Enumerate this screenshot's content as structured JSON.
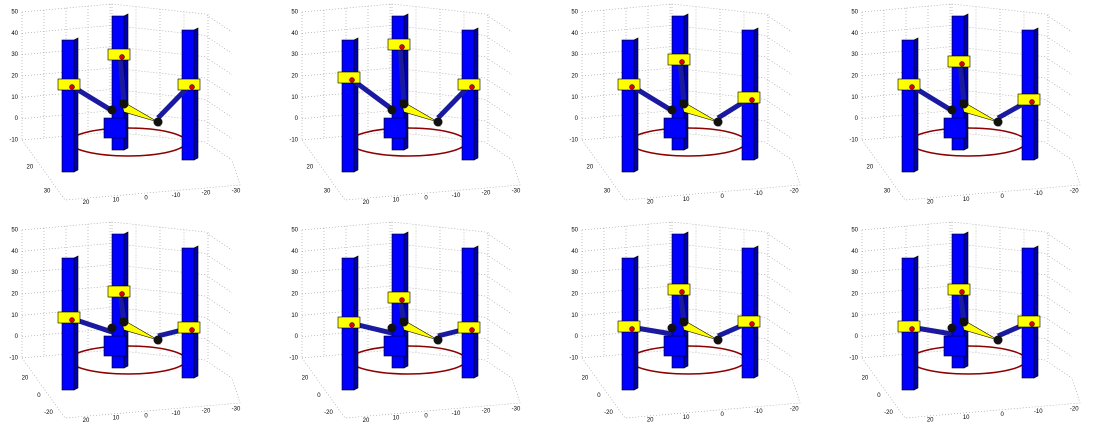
{
  "panels": [
    {
      "z_ticks": [
        50,
        40,
        30,
        20,
        10,
        0,
        -10
      ],
      "y_ticks": [
        20,
        30
      ],
      "x_ticks": [
        20,
        10,
        0,
        -10,
        -20,
        -30
      ]
    },
    {
      "z_ticks": [
        50,
        40,
        30,
        20,
        10,
        0,
        -10
      ],
      "y_ticks": [
        20,
        30
      ],
      "x_ticks": [
        20,
        10,
        0,
        -10,
        -20,
        -30
      ]
    },
    {
      "z_ticks": [
        50,
        40,
        30,
        20,
        10,
        0,
        -10
      ],
      "y_ticks": [
        20,
        30
      ],
      "x_ticks": [
        20,
        10,
        0,
        -10,
        -20
      ]
    },
    {
      "z_ticks": [
        50,
        40,
        30,
        20,
        10,
        0,
        -10
      ],
      "y_ticks": [
        20,
        30
      ],
      "x_ticks": [
        20,
        10,
        0,
        -10,
        -20
      ]
    },
    {
      "z_ticks": [
        50,
        40,
        30,
        20,
        10,
        0,
        -10
      ],
      "y_ticks": [
        20,
        0,
        -20
      ],
      "x_ticks": [
        20,
        10,
        0,
        -10,
        -20,
        -30
      ]
    },
    {
      "z_ticks": [
        50,
        40,
        30,
        20,
        10,
        0,
        -10
      ],
      "y_ticks": [
        20,
        0,
        -20
      ],
      "x_ticks": [
        20,
        10,
        0,
        -10,
        -20,
        -30
      ]
    },
    {
      "z_ticks": [
        50,
        40,
        30,
        20,
        10,
        0,
        -10
      ],
      "y_ticks": [
        20,
        0,
        -20
      ],
      "x_ticks": [
        20,
        10,
        0,
        -10,
        -20
      ]
    },
    {
      "z_ticks": [
        50,
        40,
        30,
        20,
        10,
        0,
        -10
      ],
      "y_ticks": [
        20,
        0,
        -20
      ],
      "x_ticks": [
        20,
        10,
        0,
        -10,
        -20
      ]
    }
  ]
}
